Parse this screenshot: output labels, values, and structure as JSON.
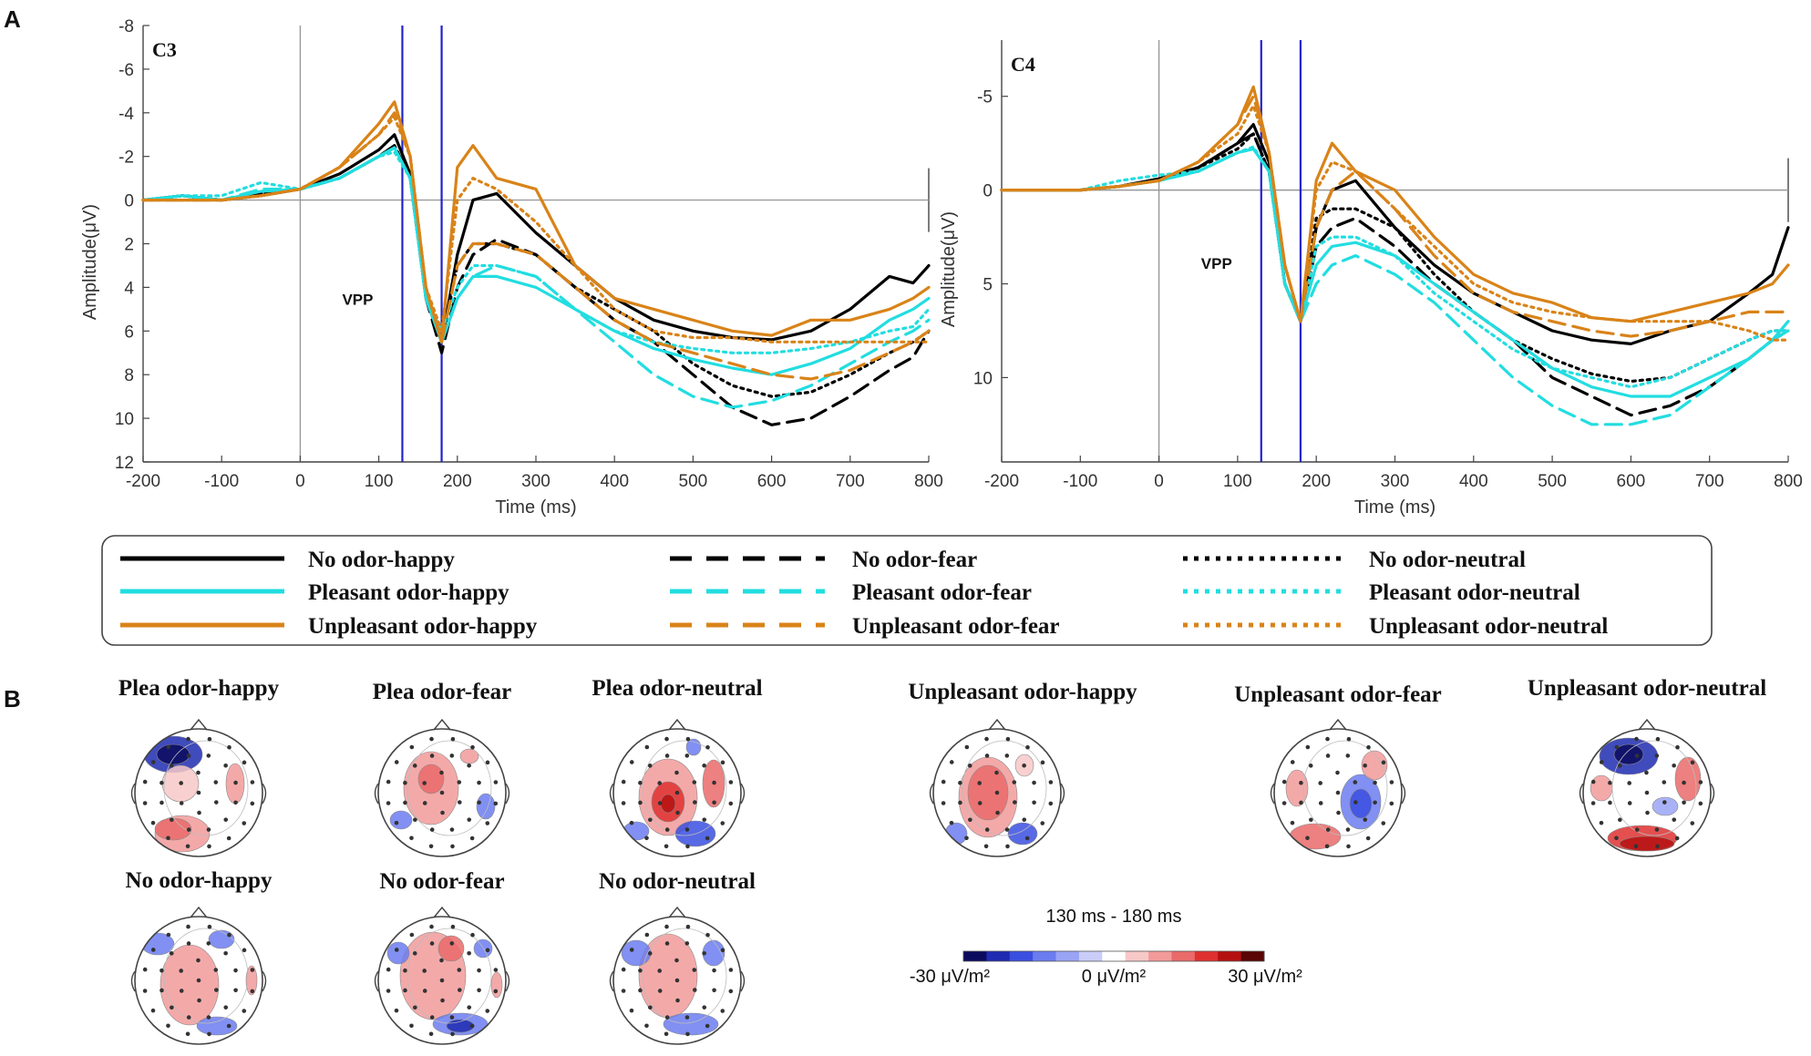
{
  "panel_labels": {
    "a": "A",
    "b": "B"
  },
  "chart_data": [
    {
      "type": "line",
      "title": "C3",
      "xlabel": "Time (ms)",
      "ylabel": "Amplitude(μV)",
      "xlim": [
        -200,
        800
      ],
      "ylim": [
        -8,
        12
      ],
      "y_inverted": true,
      "xticks": [
        -200,
        -100,
        0,
        100,
        200,
        300,
        400,
        500,
        600,
        700,
        800
      ],
      "yticks": [
        -8,
        -6,
        -4,
        -2,
        0,
        2,
        4,
        6,
        8,
        10,
        12
      ],
      "vlines": [
        0,
        130,
        180
      ],
      "annotation": "VPP",
      "x": [
        -200,
        -150,
        -100,
        -50,
        0,
        50,
        100,
        120,
        140,
        160,
        180,
        200,
        220,
        250,
        300,
        350,
        400,
        450,
        500,
        550,
        600,
        650,
        700,
        750,
        780,
        800
      ],
      "series": [
        {
          "name": "No odor-happy",
          "color": "#000000",
          "dash": "solid",
          "values": [
            0,
            -0.2,
            0,
            -0.2,
            -0.5,
            -1.2,
            -2.3,
            -3,
            -1.2,
            4.5,
            6.5,
            2.5,
            0,
            -0.3,
            1.5,
            3,
            4.5,
            5.5,
            6,
            6.3,
            6.4,
            6,
            5,
            3.5,
            3.8,
            3
          ]
        },
        {
          "name": "No odor-fear",
          "color": "#000000",
          "dash": "dash",
          "values": [
            0,
            -0.2,
            0,
            -0.3,
            -0.5,
            -1,
            -2,
            -2.5,
            -1,
            4.5,
            7,
            4,
            2.5,
            1.8,
            2.5,
            4,
            5.5,
            6.5,
            8,
            9.5,
            10.3,
            10,
            9,
            7.8,
            7.2,
            6
          ]
        },
        {
          "name": "No odor-neutral",
          "color": "#000000",
          "dash": "dot",
          "values": [
            0,
            -0.2,
            0,
            -0.3,
            -0.5,
            -1,
            -2,
            -2.5,
            -1,
            4.5,
            6.5,
            3,
            2,
            2,
            2.5,
            4,
            5,
            6,
            7.5,
            8.5,
            9,
            8.8,
            8,
            7,
            6.5,
            6
          ]
        },
        {
          "name": "Pleasant odor-happy",
          "color": "#22dde0",
          "dash": "solid",
          "values": [
            0,
            -0.2,
            0,
            -0.4,
            -0.5,
            -1,
            -2,
            -2.4,
            -1,
            4.5,
            6.5,
            4.5,
            3.5,
            3.5,
            4,
            5,
            6,
            6.8,
            7.3,
            7.7,
            8,
            7.5,
            6.8,
            5.5,
            5,
            4.5
          ]
        },
        {
          "name": "Pleasant odor-fear",
          "color": "#22dde0",
          "dash": "dash",
          "values": [
            0,
            -0.2,
            0,
            -0.5,
            -0.5,
            -1,
            -2,
            -2.4,
            -1,
            4.5,
            6.5,
            4.5,
            3.5,
            3,
            3.5,
            5,
            6.5,
            8,
            9,
            9.5,
            9.2,
            8.5,
            7.5,
            6.5,
            6,
            5.5
          ]
        },
        {
          "name": "Pleasant odor-neutral",
          "color": "#22dde0",
          "dash": "dot",
          "values": [
            0,
            -0.2,
            -0.2,
            -0.8,
            -0.5,
            -1,
            -2,
            -2.2,
            -1,
            4.5,
            6,
            4,
            3,
            3,
            3.5,
            5,
            6,
            6.5,
            6.8,
            7,
            7,
            6.8,
            6.5,
            6,
            5.8,
            5
          ]
        },
        {
          "name": "Unpleasant odor-happy",
          "color": "#d98318",
          "dash": "solid",
          "values": [
            0,
            0,
            0,
            -0.2,
            -0.5,
            -1.5,
            -3.5,
            -4.5,
            -2,
            4,
            6.5,
            -1.5,
            -2.5,
            -1,
            -0.5,
            3,
            4.5,
            5,
            5.5,
            6,
            6.2,
            5.5,
            5.5,
            5,
            4.5,
            4
          ]
        },
        {
          "name": "Unpleasant odor-fear",
          "color": "#d98318",
          "dash": "dash",
          "values": [
            0,
            0,
            0,
            -0.2,
            -0.5,
            -1.5,
            -3,
            -4,
            -2,
            4,
            6.5,
            3,
            2,
            2,
            2.5,
            4,
            5.5,
            6.5,
            7,
            7.5,
            8,
            8.2,
            7.8,
            7,
            6.5,
            6
          ]
        },
        {
          "name": "Unpleasant odor-neutral",
          "color": "#d98318",
          "dash": "dot",
          "values": [
            0,
            0,
            0,
            -0.2,
            -0.5,
            -1.5,
            -3,
            -3.8,
            -2,
            4,
            6,
            0,
            -1,
            -0.5,
            1,
            3,
            5,
            6,
            6.3,
            6.3,
            6.5,
            6.5,
            6.5,
            6.5,
            6.5,
            6.5
          ]
        }
      ]
    },
    {
      "type": "line",
      "title": "C4",
      "xlabel": "Time (ms)",
      "ylabel": "Amplitude(μV)",
      "xlim": [
        -200,
        800
      ],
      "ylim": [
        -8,
        14.5
      ],
      "y_inverted": true,
      "xticks": [
        -200,
        -100,
        0,
        100,
        200,
        300,
        400,
        500,
        600,
        700,
        800
      ],
      "yticks": [
        -5,
        0,
        5,
        10
      ],
      "vlines": [
        0,
        130,
        180
      ],
      "annotation": "VPP",
      "x": [
        -200,
        -150,
        -100,
        -50,
        0,
        50,
        100,
        120,
        140,
        160,
        180,
        200,
        220,
        250,
        300,
        350,
        400,
        450,
        500,
        550,
        600,
        650,
        700,
        750,
        780,
        800
      ],
      "series": [
        {
          "name": "No odor-happy",
          "color": "#000000",
          "dash": "solid",
          "values": [
            0,
            0,
            0,
            -0.2,
            -0.6,
            -1.2,
            -2.5,
            -3.5,
            -1.5,
            5,
            7,
            2,
            0,
            -0.5,
            2,
            4,
            5.5,
            6.5,
            7.5,
            8,
            8.2,
            7.5,
            7,
            5.5,
            4.5,
            2
          ]
        },
        {
          "name": "No odor-fear",
          "color": "#000000",
          "dash": "dash",
          "values": [
            0,
            0,
            0,
            -0.2,
            -0.6,
            -1.2,
            -2.5,
            -3,
            -1,
            5,
            7,
            3,
            2,
            1.5,
            3,
            5,
            6.5,
            8,
            10,
            11,
            12,
            11.5,
            10.5,
            9,
            8,
            7.5
          ]
        },
        {
          "name": "No odor-neutral",
          "color": "#000000",
          "dash": "dot",
          "values": [
            0,
            0,
            0,
            -0.2,
            -0.6,
            -1.2,
            -2.2,
            -3,
            -1,
            5,
            7,
            1.5,
            1,
            1,
            2,
            4.5,
            6.5,
            8,
            9,
            9.8,
            10.2,
            10,
            9,
            8,
            7.5,
            7.5
          ]
        },
        {
          "name": "Pleasant odor-happy",
          "color": "#22dde0",
          "dash": "solid",
          "values": [
            0,
            0,
            0,
            -0.2,
            -0.5,
            -1,
            -2,
            -2.2,
            -1,
            5,
            7,
            4,
            3,
            2.8,
            3.5,
            5,
            6.5,
            8,
            9.5,
            10.5,
            11,
            11,
            10,
            9,
            8,
            7
          ]
        },
        {
          "name": "Pleasant odor-fear",
          "color": "#22dde0",
          "dash": "dash",
          "values": [
            0,
            0,
            0,
            -0.2,
            -0.5,
            -1,
            -2,
            -2.2,
            -1,
            5,
            7,
            5,
            4,
            3.5,
            4.5,
            6,
            8,
            10,
            11.5,
            12.5,
            12.5,
            12,
            10.5,
            9,
            8,
            7.5
          ]
        },
        {
          "name": "Pleasant odor-neutral",
          "color": "#22dde0",
          "dash": "dot",
          "values": [
            0,
            0,
            0,
            -0.5,
            -0.8,
            -1,
            -2,
            -2.3,
            -1,
            5,
            7,
            3,
            2.5,
            2.5,
            3.5,
            5.5,
            7,
            8.5,
            9.5,
            10,
            10.5,
            10,
            9,
            8,
            7.5,
            7.5
          ]
        },
        {
          "name": "Unpleasant odor-happy",
          "color": "#d98318",
          "dash": "solid",
          "values": [
            0,
            0,
            0,
            -0.2,
            -0.5,
            -1.5,
            -3.5,
            -5.5,
            -2,
            4,
            7,
            -0.5,
            -2.5,
            -1,
            0,
            2.5,
            4.5,
            5.5,
            6,
            6.8,
            7,
            6.5,
            6,
            5.5,
            5,
            4
          ]
        },
        {
          "name": "Unpleasant odor-fear",
          "color": "#d98318",
          "dash": "dash",
          "values": [
            0,
            0,
            0,
            -0.2,
            -0.5,
            -1.5,
            -3.5,
            -5,
            -2,
            4,
            7,
            2,
            0,
            -1,
            1,
            3.5,
            5.5,
            6.5,
            7,
            7.5,
            7.8,
            7.5,
            7,
            6.5,
            6.5,
            6.5
          ]
        },
        {
          "name": "Unpleasant odor-neutral",
          "color": "#d98318",
          "dash": "dot",
          "values": [
            0,
            0,
            0,
            -0.2,
            -0.5,
            -1.5,
            -3,
            -4.5,
            -2,
            4,
            7,
            0,
            -1.5,
            -1,
            1,
            3,
            5,
            6,
            6.5,
            6.8,
            7,
            7,
            7,
            7.5,
            8,
            8
          ]
        }
      ]
    }
  ],
  "legend": [
    [
      "No odor-happy",
      "No odor-fear",
      "No odor-neutral"
    ],
    [
      "Pleasant odor-happy",
      "Pleasant odor-fear",
      "Pleasant odor-neutral"
    ],
    [
      "Unpleasant odor-happy",
      "Unpleasant odor-fear",
      "Unpleasant odor-neutral"
    ]
  ],
  "topomaps": [
    {
      "title": "Plea odor-happy"
    },
    {
      "title": "Plea odor-fear"
    },
    {
      "title": "Plea odor-neutral"
    },
    {
      "title": "Unpleasant odor-happy"
    },
    {
      "title": "Unpleasant odor-fear"
    },
    {
      "title": "Unpleasant odor-neutral"
    },
    {
      "title": "No odor-happy"
    },
    {
      "title": "No odor-fear"
    },
    {
      "title": "No odor-neutral"
    }
  ],
  "colorbar": {
    "title": "130 ms - 180 ms",
    "min_label": "-30 μV/m²",
    "mid_label": "0 μV/m²",
    "max_label": "30 μV/m²",
    "colors": [
      "#0b0b5e",
      "#1f2bb0",
      "#3a4fe0",
      "#6b7cf0",
      "#9aa4f5",
      "#c9cdf8",
      "#ffffff",
      "#f7c8c8",
      "#f29a9a",
      "#ea6a6a",
      "#df3030",
      "#b51010",
      "#5a0505"
    ]
  }
}
